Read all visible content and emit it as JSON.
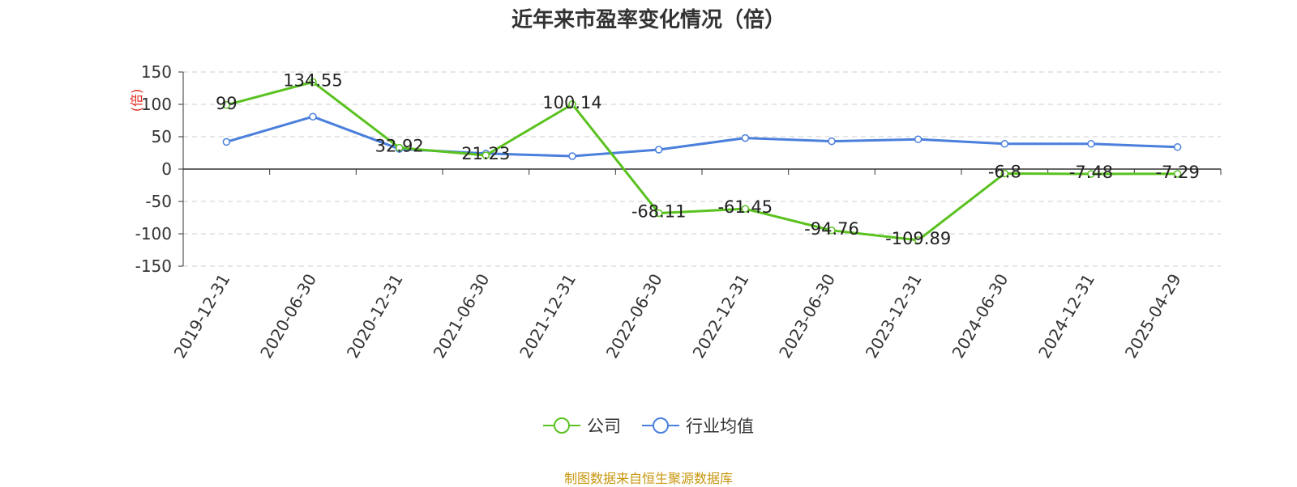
{
  "chart_data": {
    "type": "line",
    "title": "近年来市盈率变化情况（倍）",
    "ylabel": "(倍)",
    "xlabel": "",
    "categories": [
      "2019-12-31",
      "2020-06-30",
      "2020-12-31",
      "2021-06-30",
      "2021-12-31",
      "2022-06-30",
      "2022-12-31",
      "2023-06-30",
      "2023-12-31",
      "2024-06-30",
      "2024-12-31",
      "2025-04-29"
    ],
    "yticks": [
      150,
      100,
      50,
      0,
      -50,
      -100,
      -150
    ],
    "ylim": [
      -150,
      150
    ],
    "grid": true,
    "legend_position": "bottom",
    "series": [
      {
        "name": "公司",
        "color": "#5ac21f",
        "values": [
          99,
          134.55,
          32.92,
          21.23,
          100.14,
          -68.11,
          -61.45,
          -94.76,
          -109.89,
          -6.8,
          -7.48,
          -7.29
        ],
        "data_labels": [
          "99",
          "134.55",
          "32.92",
          "21.23",
          "100.14",
          "-68.11",
          "-61.45",
          "-94.76",
          "-109.89",
          "-6.8",
          "-7.48",
          "-7.29"
        ]
      },
      {
        "name": "行业均值",
        "color": "#4a7fdc",
        "values": [
          42,
          81,
          31,
          24,
          20,
          30,
          48,
          43,
          46,
          39,
          39,
          34
        ]
      }
    ]
  },
  "source_text": "制图数据来自恒生聚源数据库"
}
